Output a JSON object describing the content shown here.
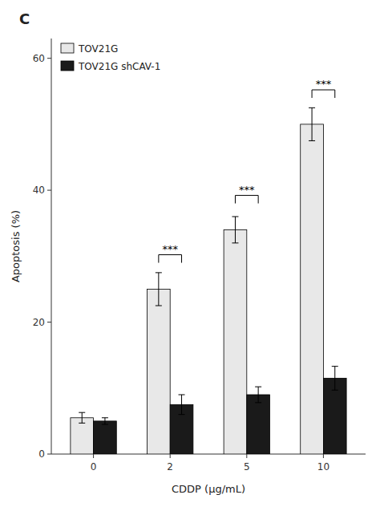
{
  "chart_data": {
    "type": "bar",
    "title": "C",
    "xlabel": "CDDP (μg/mL)",
    "ylabel": "Apoptosis (%)",
    "categories": [
      "0",
      "2",
      "5",
      "10"
    ],
    "series": [
      {
        "name": "TOV21G",
        "color": "#e8e8e8",
        "values": [
          5.5,
          25.0,
          34.0,
          50.0
        ],
        "errors": [
          0.8,
          2.5,
          2.0,
          2.5
        ]
      },
      {
        "name": "TOV21G shCAV-1",
        "color": "#1a1a1a",
        "values": [
          5.0,
          7.5,
          9.0,
          11.5
        ],
        "errors": [
          0.5,
          1.5,
          1.2,
          1.8
        ]
      }
    ],
    "ylim": [
      0,
      63
    ],
    "yticks": [
      0,
      20,
      40,
      60
    ],
    "legend": "upper left",
    "grid": false,
    "annotations": [
      {
        "text": "***",
        "category": "2",
        "y": 29
      },
      {
        "text": "***",
        "category": "5",
        "y": 38
      },
      {
        "text": "***",
        "category": "10",
        "y": 54
      }
    ]
  }
}
